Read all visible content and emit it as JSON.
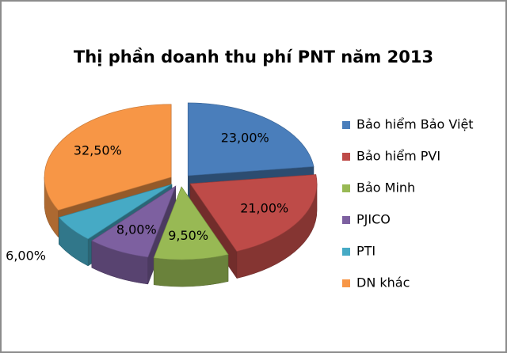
{
  "chart_data": {
    "type": "pie3d",
    "title": "Thị phần doanh thu phí PNT năm 2013",
    "categories": [
      "Bảo hiểm Bảo Việt",
      "Bảo hiểm PVI",
      "Bảo Minh",
      "PJICO",
      "PTI",
      "DN khác"
    ],
    "values": [
      23,
      21,
      9.5,
      8,
      6,
      32.5
    ],
    "value_labels": [
      "23,00%",
      "21,00%",
      "9,50%",
      "8,00%",
      "6,00%",
      "32,50%"
    ],
    "colors": [
      "#4a7ebb",
      "#be4b48",
      "#98b954",
      "#7d60a0",
      "#46aac5",
      "#f79646"
    ],
    "legend": "right"
  }
}
